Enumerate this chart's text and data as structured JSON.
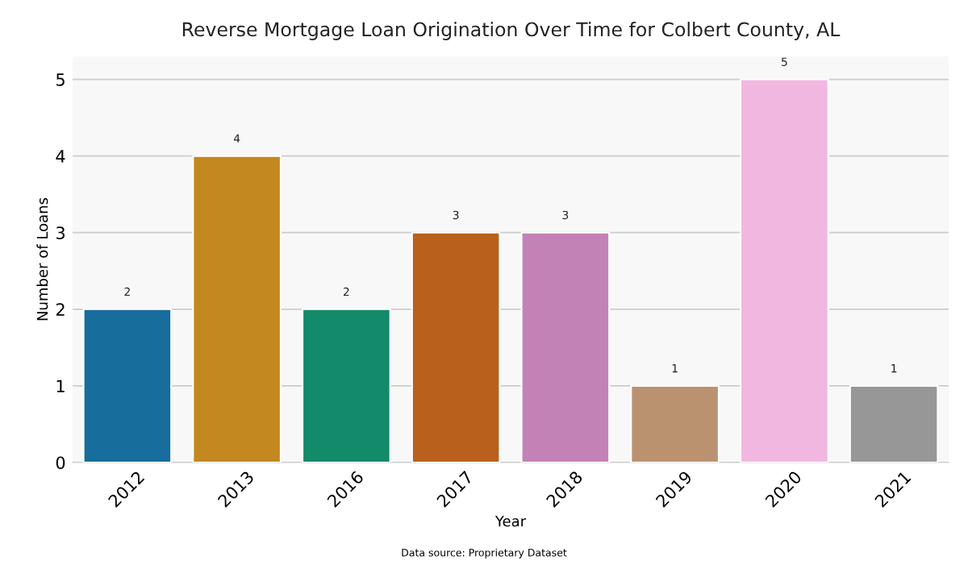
{
  "chart_data": {
    "type": "bar",
    "title": "Reverse Mortgage Loan Origination Over Time for Colbert County, AL",
    "xlabel": "Year",
    "ylabel": "Number of Loans",
    "categories": [
      "2012",
      "2013",
      "2016",
      "2017",
      "2018",
      "2019",
      "2020",
      "2021"
    ],
    "values": [
      2,
      4,
      2,
      3,
      3,
      1,
      5,
      1
    ],
    "colors": [
      "#176d9c",
      "#c38820",
      "#138a6a",
      "#b9601c",
      "#c382b6",
      "#bb9270",
      "#f1b7e0",
      "#979797"
    ],
    "ylim": [
      0,
      5.3
    ],
    "yticks": [
      0,
      1,
      2,
      3,
      4,
      5
    ],
    "grid": "y",
    "data_labels": true,
    "annotations": [
      "Data source: Proprietary Dataset"
    ]
  }
}
